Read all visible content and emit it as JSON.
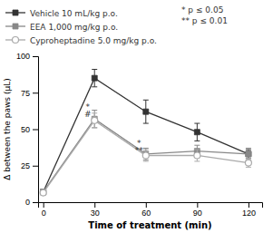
{
  "chart_data": {
    "type": "line",
    "xlabel": "Time of treatment (min)",
    "ylabel": "Δ between the paws (μL)",
    "x": [
      0,
      30,
      60,
      90,
      120
    ],
    "xlim": [
      -3,
      128
    ],
    "xticks": [
      0,
      30,
      60,
      90,
      120
    ],
    "ylim": [
      0,
      100
    ],
    "yticks": [
      0,
      25,
      50,
      75,
      100
    ],
    "grid": false,
    "legend": "top",
    "series": [
      {
        "name": "Vehicle 10 mL/kg p.o.",
        "color": "#333333",
        "marker": "square",
        "values": [
          7,
          85,
          62,
          48,
          33
        ],
        "errors": [
          1.5,
          6,
          8,
          6,
          3
        ]
      },
      {
        "name": "EEA 1,000 mg/kg p.o.",
        "color": "#888888",
        "marker": "square",
        "values": [
          7,
          57,
          33,
          35,
          33
        ],
        "errors": [
          1.5,
          6,
          4,
          4,
          4
        ]
      },
      {
        "name": "Cyproheptadine 5.0 mg/kg p.o.",
        "color": "#aaaaaa",
        "marker": "open-circle",
        "values": [
          6.5,
          56,
          32,
          32,
          27
        ],
        "errors": [
          1.5,
          5,
          4,
          4,
          3
        ]
      }
    ],
    "annotations": [
      {
        "text": "*\n#",
        "x": 26,
        "y": 63
      },
      {
        "text": "*\n**",
        "x": 56,
        "y": 38
      },
      {
        "text": "* p ≤ 0.05"
      },
      {
        "text": "** p ≤ 0.01"
      }
    ]
  }
}
